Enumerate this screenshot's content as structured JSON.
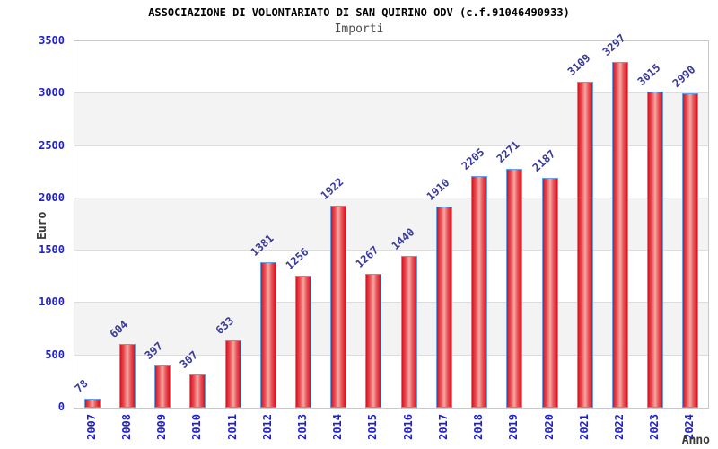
{
  "chart_data": {
    "type": "bar",
    "title": "ASSOCIAZIONE DI VOLONTARIATO DI SAN QUIRINO ODV (c.f.91046490933)",
    "subtitle": "Importi",
    "xlabel": "Anno",
    "ylabel": "Euro",
    "categories": [
      "2007",
      "2008",
      "2009",
      "2010",
      "2011",
      "2012",
      "2013",
      "2014",
      "2015",
      "2016",
      "2017",
      "2018",
      "2019",
      "2020",
      "2021",
      "2022",
      "2023",
      "2024"
    ],
    "values": [
      78,
      604,
      397,
      307,
      633,
      1381,
      1256,
      1922,
      1267,
      1440,
      1910,
      2205,
      2271,
      2187,
      3109,
      3297,
      3015,
      2990
    ],
    "ylim": [
      0,
      3500
    ],
    "yticks": [
      0,
      500,
      1000,
      1500,
      2000,
      2500,
      3000,
      3500
    ],
    "grid": "horizontal-bands-alternating",
    "legend": "none",
    "colors": {
      "bar_edge": "#d8101f",
      "bar_mid": "#e9565a",
      "bar_center": "#f6a9a4",
      "bar_border": "#64a0e6",
      "axis_tick_blue": "#1f1fd0",
      "value_label_navy": "#3a3a99",
      "band_gray": "#f3f3f3",
      "plot_border": "#c8c8c8",
      "gridline": "#dcdcdc",
      "title_color": "#000000",
      "subtitle_color": "#4d4d4d",
      "axis_title_color": "#3a3a3a"
    }
  }
}
